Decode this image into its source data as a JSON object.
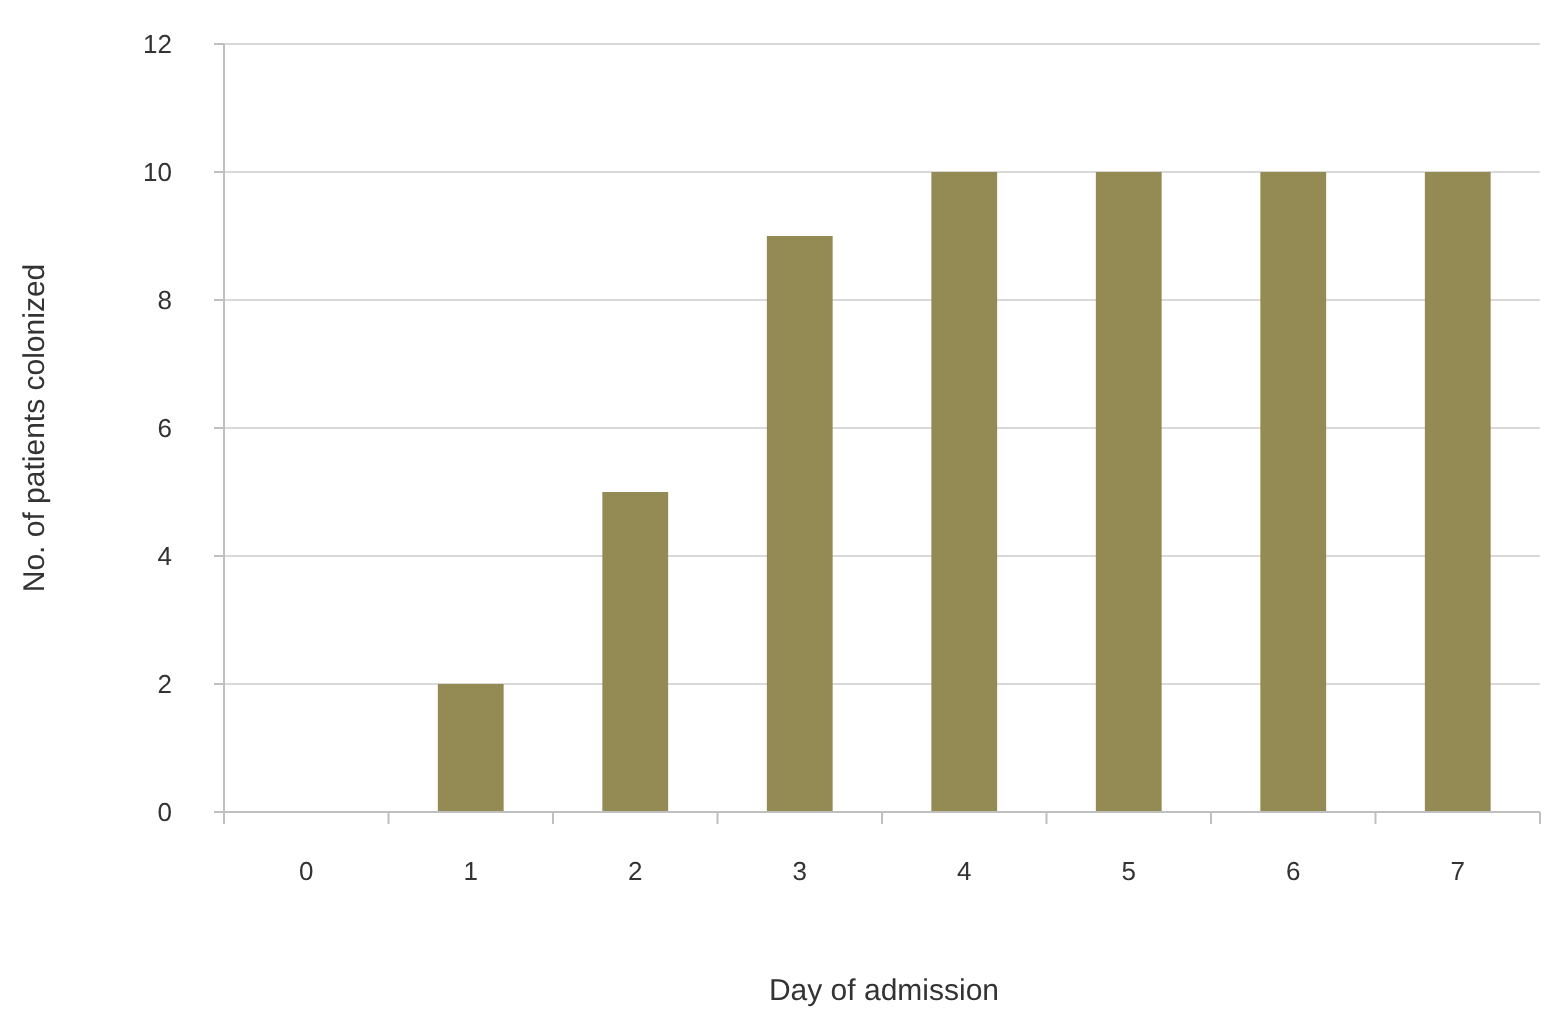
{
  "chart_data": {
    "type": "bar",
    "xlabel": "Day of admission",
    "ylabel": "No. of patients colonized",
    "categories": [
      "0",
      "1",
      "2",
      "3",
      "4",
      "5",
      "6",
      "7"
    ],
    "values": [
      0,
      2,
      5,
      9,
      10,
      10,
      10,
      10
    ],
    "color": "#948a54",
    "ylim": [
      0,
      12
    ],
    "yticks": [
      0,
      2,
      4,
      6,
      8,
      10,
      12
    ],
    "grid": "y"
  }
}
